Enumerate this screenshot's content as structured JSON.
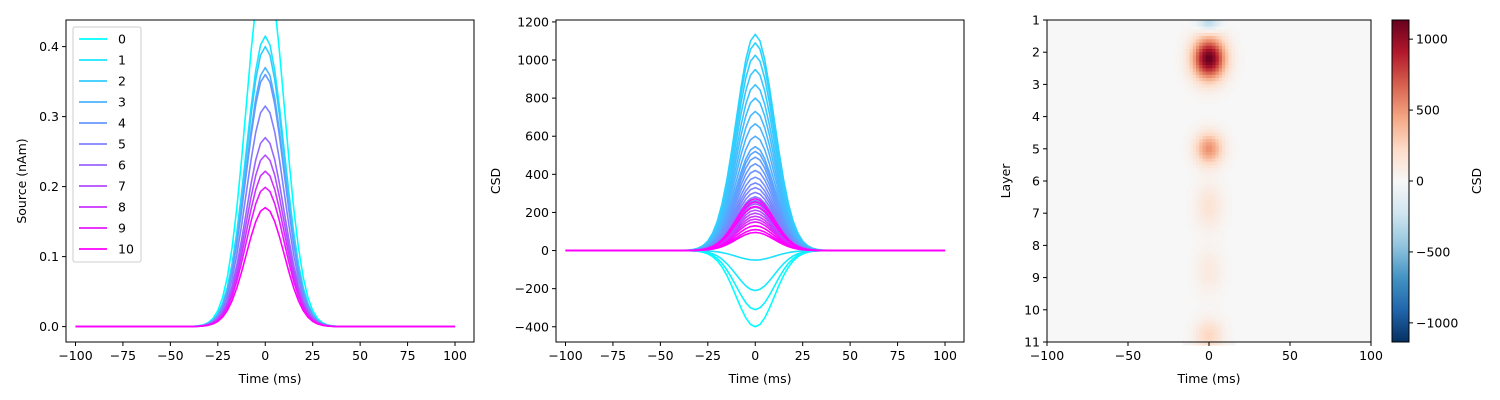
{
  "chart_data": [
    {
      "type": "line",
      "xlabel": "Time (ms)",
      "ylabel": "Source (nAm)",
      "xlim": [
        -105,
        110
      ],
      "ylim": [
        -0.022,
        0.438
      ],
      "xticks": [
        -100,
        -75,
        -50,
        -25,
        0,
        25,
        50,
        75,
        100
      ],
      "xtick_labels": [
        "−100",
        "−75",
        "−50",
        "−25",
        "0",
        "25",
        "50",
        "75",
        "100"
      ],
      "yticks": [
        0.0,
        0.1,
        0.2,
        0.3,
        0.4
      ],
      "ytick_labels": [
        "0.0",
        "0.1",
        "0.2",
        "0.3",
        "0.4"
      ],
      "grid": false,
      "legend_position": "top-left",
      "x_start": -100,
      "x_end": 100,
      "pulse_width_ms": 10,
      "series": [
        {
          "name": "0",
          "color": "#00ffff",
          "peak": 0.52
        },
        {
          "name": "1",
          "color": "#19e6ff",
          "peak": 0.415
        },
        {
          "name": "2",
          "color": "#33ccff",
          "peak": 0.4
        },
        {
          "name": "3",
          "color": "#4db3ff",
          "peak": 0.37
        },
        {
          "name": "4",
          "color": "#6699ff",
          "peak": 0.36
        },
        {
          "name": "5",
          "color": "#8080ff",
          "peak": 0.315
        },
        {
          "name": "6",
          "color": "#9966ff",
          "peak": 0.27
        },
        {
          "name": "7",
          "color": "#b34dff",
          "peak": 0.245
        },
        {
          "name": "8",
          "color": "#cc33ff",
          "peak": 0.222
        },
        {
          "name": "9",
          "color": "#e619ff",
          "peak": 0.199
        },
        {
          "name": "10",
          "color": "#ff00ff",
          "peak": 0.17
        }
      ]
    },
    {
      "type": "line",
      "xlabel": "Time (ms)",
      "ylabel": "CSD",
      "xlim": [
        -105,
        110
      ],
      "ylim": [
        -480,
        1210
      ],
      "xticks": [
        -100,
        -75,
        -50,
        -25,
        0,
        25,
        50,
        75,
        100
      ],
      "xtick_labels": [
        "−100",
        "−75",
        "−50",
        "−25",
        "0",
        "25",
        "50",
        "75",
        "100"
      ],
      "yticks": [
        -400,
        -200,
        0,
        200,
        400,
        600,
        800,
        1000,
        1200
      ],
      "ytick_labels": [
        "−400",
        "−200",
        "0",
        "200",
        "400",
        "600",
        "800",
        "1000",
        "1200"
      ],
      "grid": false,
      "x_start": -100,
      "x_end": 100,
      "pulse_width_ms": 10,
      "series": [
        {
          "color": "#00ffff",
          "peak": -400
        },
        {
          "color": "#0af5ff",
          "peak": -310
        },
        {
          "color": "#14ebff",
          "peak": -210
        },
        {
          "color": "#1ee1ff",
          "peak": -50
        },
        {
          "color": "#28d7ff",
          "peak": 1135
        },
        {
          "color": "#2ed1ff",
          "peak": 1090
        },
        {
          "color": "#33ccff",
          "peak": 1025
        },
        {
          "color": "#38c7ff",
          "peak": 950
        },
        {
          "color": "#3dc2ff",
          "peak": 870
        },
        {
          "color": "#42bdff",
          "peak": 800
        },
        {
          "color": "#47b8ff",
          "peak": 730
        },
        {
          "color": "#4db3ff",
          "peak": 665
        },
        {
          "color": "#52adff",
          "peak": 600
        },
        {
          "color": "#57a8ff",
          "peak": 545
        },
        {
          "color": "#5ca3ff",
          "peak": 520
        },
        {
          "color": "#619eff",
          "peak": 490
        },
        {
          "color": "#6699ff",
          "peak": 455
        },
        {
          "color": "#6b94ff",
          "peak": 420
        },
        {
          "color": "#708fff",
          "peak": 385
        },
        {
          "color": "#758aff",
          "peak": 355
        },
        {
          "color": "#7a85ff",
          "peak": 330
        },
        {
          "color": "#8080ff",
          "peak": 305
        },
        {
          "color": "#857aff",
          "peak": 282
        },
        {
          "color": "#8a75ff",
          "peak": 262
        },
        {
          "color": "#9966ff",
          "peak": 245
        },
        {
          "color": "#a85cff",
          "peak": 228
        },
        {
          "color": "#b34dff",
          "peak": 212
        },
        {
          "color": "#bd42ff",
          "peak": 196
        },
        {
          "color": "#cc33ff",
          "peak": 180
        },
        {
          "color": "#d62eff",
          "peak": 165
        },
        {
          "color": "#e619ff",
          "peak": 150
        },
        {
          "color": "#ee0fff",
          "peak": 272
        },
        {
          "color": "#f50aff",
          "peak": 255
        },
        {
          "color": "#ff00ff",
          "peak": 232
        },
        {
          "color": "#ff00ff",
          "peak": 130
        },
        {
          "color": "#ff00ff",
          "peak": 110
        },
        {
          "color": "#ff00ff",
          "peak": 95
        }
      ]
    },
    {
      "type": "heatmap",
      "xlabel": "Time (ms)",
      "ylabel": "Layer",
      "xlim": [
        -100,
        100
      ],
      "ylim": [
        11,
        1
      ],
      "xticks": [
        -100,
        -50,
        0,
        50,
        100
      ],
      "xtick_labels": [
        "−100",
        "−50",
        "0",
        "50",
        "100"
      ],
      "yticks": [
        1,
        2,
        3,
        4,
        5,
        6,
        7,
        8,
        9,
        10,
        11
      ],
      "ytick_labels": [
        "1",
        "2",
        "3",
        "4",
        "5",
        "6",
        "7",
        "8",
        "9",
        "10",
        "11"
      ],
      "colorbar_label": "CSD",
      "colorbar_range": [
        -1135,
        1135
      ],
      "colorbar_ticks": [
        -1000,
        -500,
        0,
        500,
        1000
      ],
      "colorbar_tick_labels": [
        "−1000",
        "−500",
        "0",
        "500",
        "1000"
      ],
      "colormap": "RdBu_r",
      "blobs": [
        {
          "layer": 1.1,
          "time": 0,
          "value": -350,
          "sigma_t": 5,
          "sigma_l": 0.18
        },
        {
          "layer": 2.2,
          "time": 0,
          "value": 1135,
          "sigma_t": 7,
          "sigma_l": 0.45
        },
        {
          "layer": 5.0,
          "time": 0,
          "value": 520,
          "sigma_t": 6,
          "sigma_l": 0.35
        },
        {
          "layer": 6.8,
          "time": 0,
          "value": 160,
          "sigma_t": 6,
          "sigma_l": 0.5
        },
        {
          "layer": 8.8,
          "time": 0,
          "value": 110,
          "sigma_t": 6,
          "sigma_l": 0.5
        },
        {
          "layer": 10.8,
          "time": 0,
          "value": 240,
          "sigma_t": 6,
          "sigma_l": 0.35
        }
      ]
    }
  ]
}
